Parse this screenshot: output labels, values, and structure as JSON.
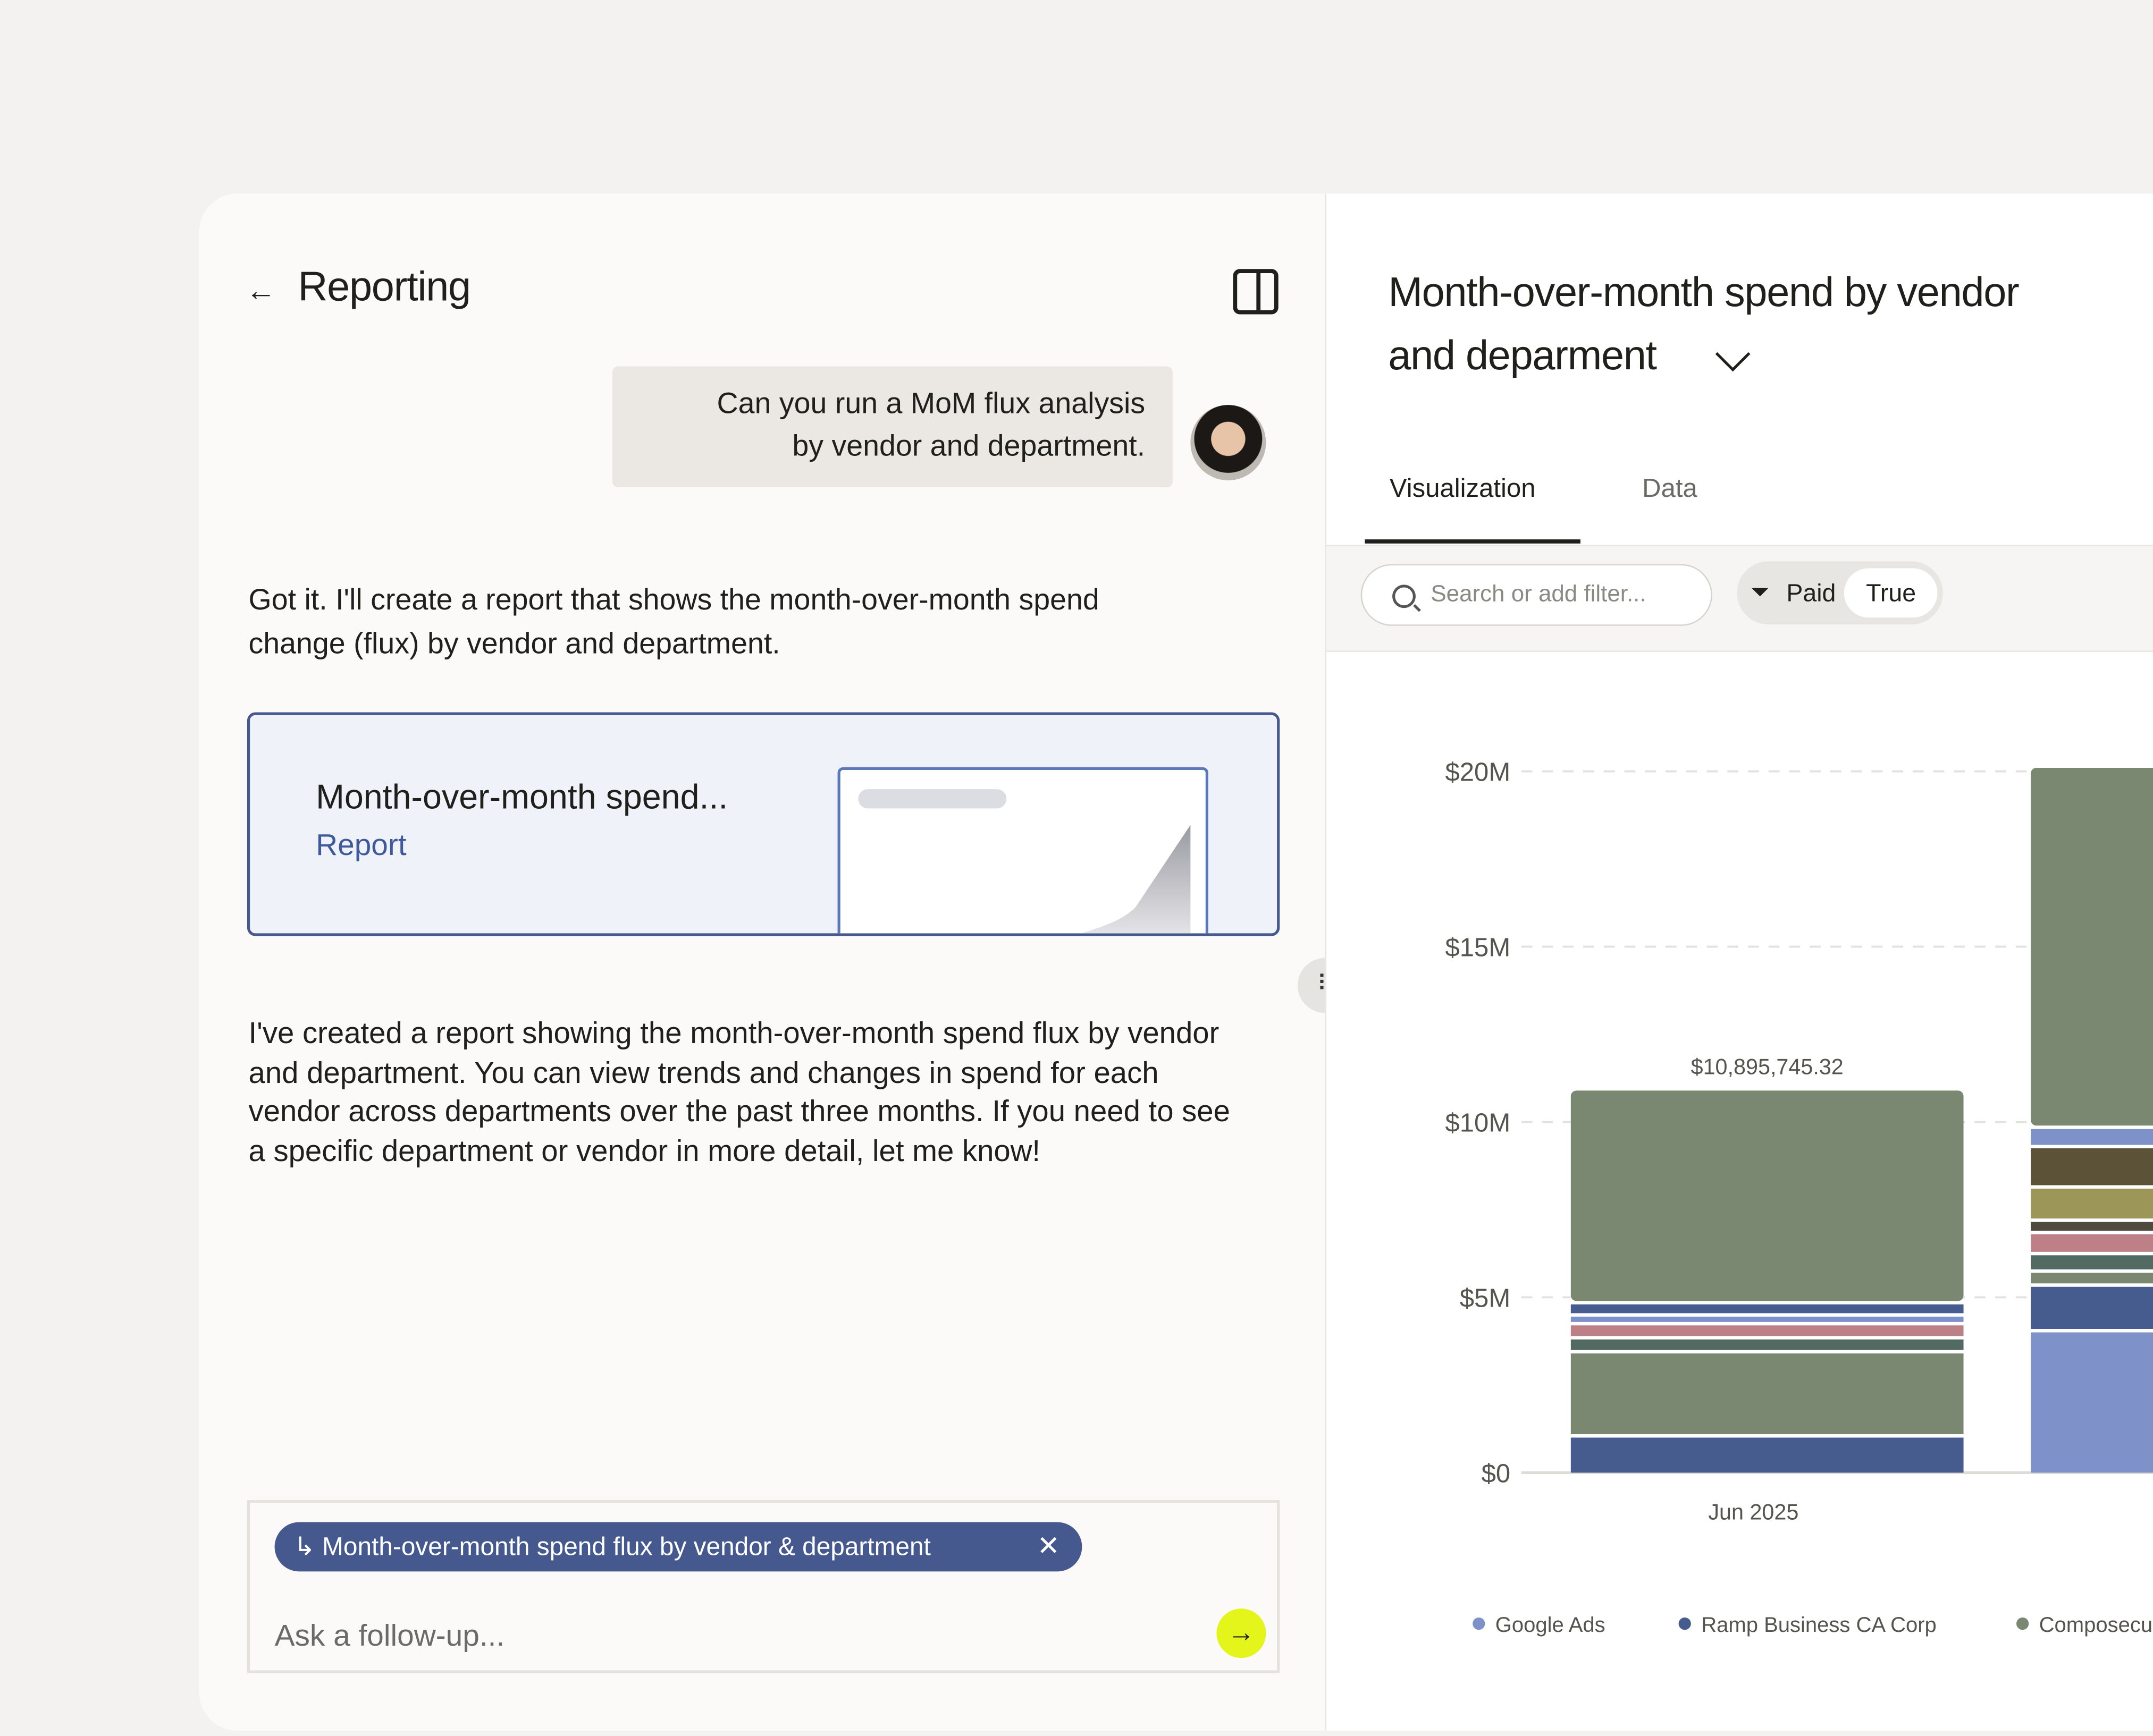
{
  "left_panel": {
    "back_icon": "arrow-left-icon",
    "title": "Reporting",
    "panel_toggle_icon": "sidebar-panel-icon",
    "user_message_lines": [
      "Can you run a MoM flux analysis",
      "by vendor and department."
    ],
    "assistant_intro_lines": [
      "Got it. I'll create a report that shows the month-over-month spend",
      "change (flux) by vendor and department."
    ],
    "report_card": {
      "title": "Month-over-month spend...",
      "subtitle": "Report"
    },
    "assistant_followup_lines": [
      "I've created a report showing the month-over-month spend flux by vendor",
      "and department. You can view trends and changes in spend for each",
      "vendor across departments over the past three months. If you need to see",
      "a specific department or vendor in more detail, let me know!"
    ],
    "composer": {
      "context_chip": "Month-over-month spend flux by vendor & department",
      "chip_close": "✕",
      "placeholder": "Ask a follow-up...",
      "send_icon": "arrow-right-icon",
      "accent": "#e3f51b"
    }
  },
  "right_panel": {
    "title_lines": [
      "Month-over-month spend by vendor",
      "and deparment"
    ],
    "tabs": [
      {
        "label": "Visualization",
        "active": true
      },
      {
        "label": "Data",
        "active": false
      }
    ],
    "search_placeholder": "Search or add filter...",
    "filter": {
      "label": "Paid",
      "value": "True"
    }
  },
  "chart_data": {
    "type": "bar",
    "stacked": true,
    "categories": [
      "Jun 2025",
      ""
    ],
    "ylim": [
      0,
      20000000
    ],
    "y_ticks": [
      "$0",
      "$5M",
      "$10M",
      "$15M",
      "$20M"
    ],
    "grid": "dashed horizontal",
    "total_labels": [
      "$10,895,745.32",
      ""
    ],
    "stacks": [
      [
        {
          "value": 1000000,
          "color": "#465c8f"
        },
        {
          "value": 2400000,
          "color": "#7a8872"
        },
        {
          "value": 400000,
          "color": "#536a63"
        },
        {
          "value": 400000,
          "color": "#bd8086"
        },
        {
          "value": 250000,
          "color": "#7f91c9"
        },
        {
          "value": 350000,
          "color": "#465c8f"
        },
        {
          "value": 6095745.32,
          "color": "#7a8872"
        }
      ],
      [
        {
          "value": 4000000,
          "color": "#7f91c9"
        },
        {
          "value": 1300000,
          "color": "#465c8f"
        },
        {
          "value": 400000,
          "color": "#7a8872"
        },
        {
          "value": 500000,
          "color": "#536a63"
        },
        {
          "value": 600000,
          "color": "#bd8086"
        },
        {
          "value": 350000,
          "color": "#4e4a3e"
        },
        {
          "value": 950000,
          "color": "#9d9659"
        },
        {
          "value": 1150000,
          "color": "#5c5238"
        },
        {
          "value": 550000,
          "color": "#7f91c9"
        },
        {
          "value": 10300000,
          "color": "#7a8872"
        }
      ]
    ],
    "legend": [
      {
        "name": "Google Ads",
        "color": "#7f91c9"
      },
      {
        "name": "Ramp Business CA Corp",
        "color": "#465c8f"
      },
      {
        "name": "Composecu",
        "color": "#7a8872"
      }
    ],
    "legend_placement": "bottom"
  }
}
